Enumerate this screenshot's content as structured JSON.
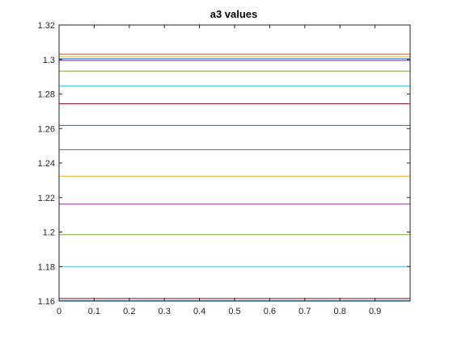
{
  "chart_data": {
    "type": "line",
    "title": "a3 values",
    "xlabel": "",
    "ylabel": "",
    "xlim": [
      0,
      1
    ],
    "ylim": [
      1.16,
      1.32
    ],
    "x_ticks": [
      "0",
      "0.1",
      "0.2",
      "0.3",
      "0.4",
      "0.5",
      "0.6",
      "0.7",
      "0.8",
      "0.9"
    ],
    "y_ticks": [
      "1.16",
      "1.18",
      "1.2",
      "1.22",
      "1.24",
      "1.26",
      "1.28",
      "1.3",
      "1.32"
    ],
    "x_tick_values": [
      0,
      0.1,
      0.2,
      0.3,
      0.4,
      0.5,
      0.6,
      0.7,
      0.8,
      0.9
    ],
    "y_tick_values": [
      1.16,
      1.18,
      1.2,
      1.22,
      1.24,
      1.26,
      1.28,
      1.3,
      1.32
    ],
    "grid": false,
    "legend": "none",
    "series": [
      {
        "x": [
          0,
          1
        ],
        "values": [
          1.1605,
          1.1605
        ],
        "color": "#4DBEEE"
      },
      {
        "x": [
          0,
          1
        ],
        "values": [
          1.1615,
          1.1615
        ],
        "color": "#A2142F"
      },
      {
        "x": [
          0,
          1
        ],
        "values": [
          1.18,
          1.18
        ],
        "color": "#4DBEEE"
      },
      {
        "x": [
          0,
          1
        ],
        "values": [
          1.1985,
          1.1985
        ],
        "color": "#77AC30"
      },
      {
        "x": [
          0,
          1
        ],
        "values": [
          1.2162,
          1.2162
        ],
        "color": "#7E2F8E"
      },
      {
        "x": [
          0,
          1
        ],
        "values": [
          1.2324,
          1.2324
        ],
        "color": "#EDB120"
      },
      {
        "x": [
          0,
          1
        ],
        "values": [
          1.2477,
          1.2477
        ],
        "color": "#D95319"
      },
      {
        "x": [
          0,
          1
        ],
        "values": [
          1.2618,
          1.2618
        ],
        "color": "#0072BD"
      },
      {
        "x": [
          0,
          1
        ],
        "values": [
          1.2744,
          1.2744
        ],
        "color": "#A2142F"
      },
      {
        "x": [
          0,
          1
        ],
        "values": [
          1.2847,
          1.2847
        ],
        "color": "#4DBEEE"
      },
      {
        "x": [
          0,
          1
        ],
        "values": [
          1.2933,
          1.2933
        ],
        "color": "#77AC30"
      },
      {
        "x": [
          0,
          1
        ],
        "values": [
          1.2995,
          1.2995
        ],
        "color": "#7E2F8E"
      },
      {
        "x": [
          0,
          1
        ],
        "values": [
          1.3004,
          1.3004
        ],
        "color": "#0072BD"
      },
      {
        "x": [
          0,
          1
        ],
        "values": [
          1.3017,
          1.3017
        ],
        "color": "#EDB120"
      },
      {
        "x": [
          0,
          1
        ],
        "values": [
          1.3031,
          1.3031
        ],
        "color": "#D95319"
      }
    ]
  }
}
